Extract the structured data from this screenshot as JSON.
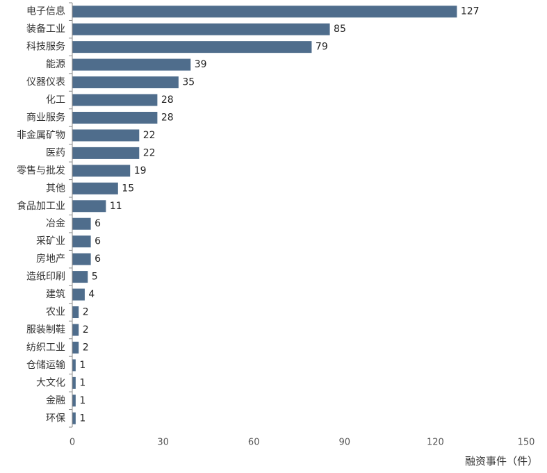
{
  "chart_data": {
    "type": "bar",
    "orientation": "horizontal",
    "categories": [
      "电子信息",
      "装备工业",
      "科技服务",
      "能源",
      "仪器仪表",
      "化工",
      "商业服务",
      "非金属矿物",
      "医药",
      "零售与批发",
      "其他",
      "食品加工业",
      "冶金",
      "采矿业",
      "房地产",
      "造纸印刷",
      "建筑",
      "农业",
      "服装制鞋",
      "纺织工业",
      "仓储运输",
      "大文化",
      "金融",
      "环保"
    ],
    "values": [
      127,
      85,
      79,
      39,
      35,
      28,
      28,
      22,
      22,
      19,
      15,
      11,
      6,
      6,
      6,
      5,
      4,
      2,
      2,
      2,
      1,
      1,
      1,
      1
    ],
    "xlabel": "融资事件（件）",
    "ylabel": "",
    "xlim": [
      0,
      150
    ],
    "xticks": [
      0,
      30,
      60,
      90,
      120,
      150
    ],
    "grid": false,
    "data_labels": true,
    "bar_color": "#4f6d8c"
  }
}
